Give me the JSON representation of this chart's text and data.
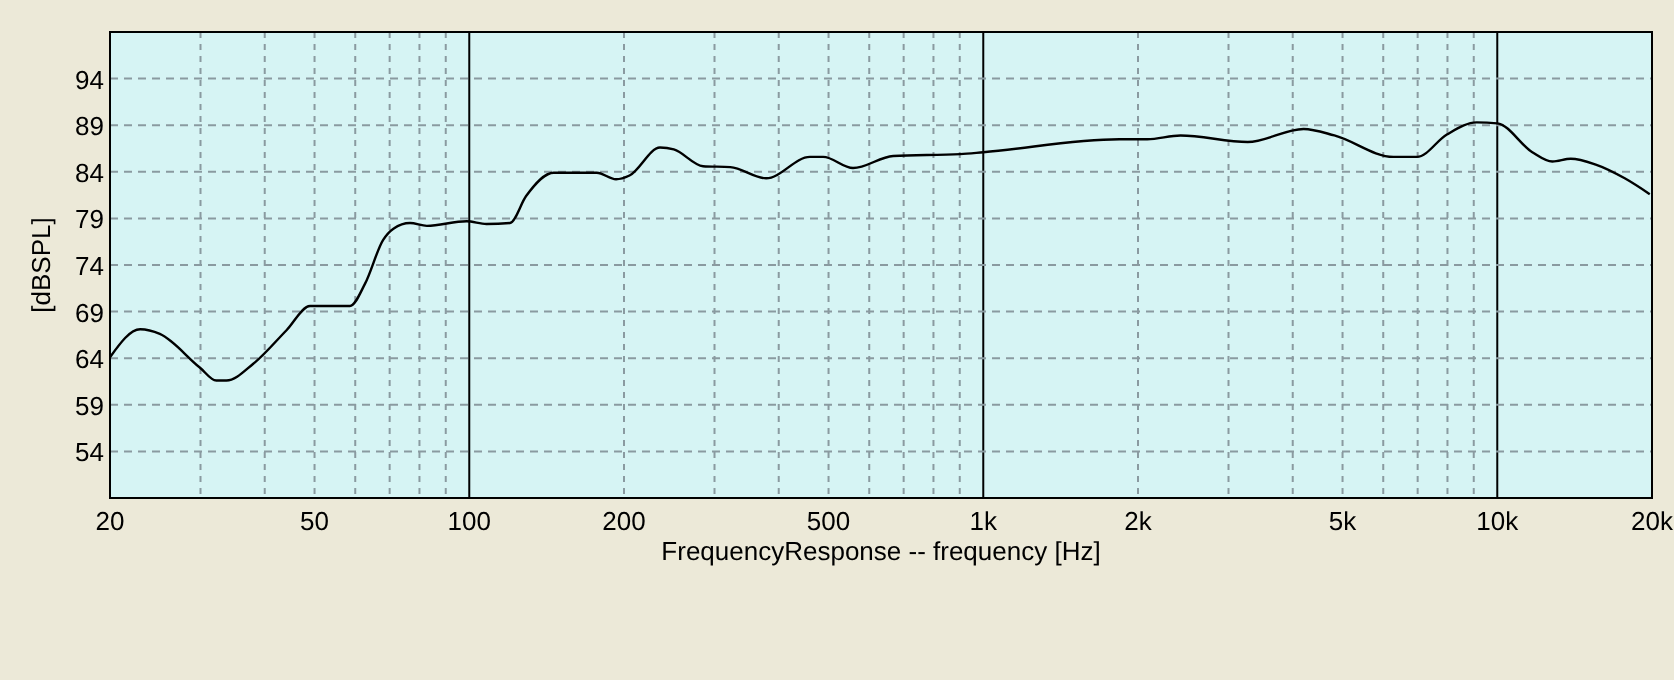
{
  "chart_data": {
    "type": "line",
    "xlabel": "FrequencyResponse -- frequency [Hz]",
    "ylabel": "[dBSPL]",
    "log": "x",
    "grid": true,
    "xlim": [
      20,
      20000
    ],
    "ylim": [
      49,
      99
    ],
    "yticks": [
      54,
      59,
      64,
      69,
      74,
      79,
      84,
      89,
      94
    ],
    "xticks": [
      20,
      {
        "value": 30,
        "label": null
      },
      {
        "value": 40,
        "label": null
      },
      50,
      {
        "value": 60,
        "label": null
      },
      {
        "value": 70,
        "label": null
      },
      {
        "value": 80,
        "label": null
      },
      {
        "value": 90,
        "label": null
      },
      100,
      200,
      {
        "value": 300,
        "label": null
      },
      {
        "value": 400,
        "label": null
      },
      500,
      {
        "value": 600,
        "label": null
      },
      {
        "value": 700,
        "label": null
      },
      {
        "value": 800,
        "label": null
      },
      {
        "value": 900,
        "label": null
      },
      {
        "value": 1000,
        "label": "1k"
      },
      {
        "value": 2000,
        "label": "2k"
      },
      {
        "value": 3000,
        "label": null
      },
      {
        "value": 4000,
        "label": null
      },
      {
        "value": 5000,
        "label": "5k"
      },
      {
        "value": 6000,
        "label": null
      },
      {
        "value": 7000,
        "label": null
      },
      {
        "value": 8000,
        "label": null
      },
      {
        "value": 9000,
        "label": null
      },
      {
        "value": 10000,
        "label": "10k"
      },
      {
        "value": 20000,
        "label": "20k"
      }
    ],
    "series": [
      {
        "color": "#000000",
        "x": [
          20,
          22.9,
          25,
          29.9,
          32.2,
          33.7,
          38,
          44.1,
          49,
          58.6,
          62.7,
          68,
          71.2,
          76.7,
          82.7,
          98.8,
          108,
          120,
          129,
          146,
          177,
          193,
          205,
          235,
          250,
          285,
          322,
          378,
          460,
          488,
          558,
          668,
          902,
          1000,
          1840,
          2085,
          2420,
          3270,
          4200,
          4820,
          6280,
          6980,
          7980,
          9120,
          10000,
          11700,
          12800,
          13900,
          15500,
          17700,
          19800
        ],
        "values": [
          64.1,
          67.1,
          66.6,
          63.0,
          61.6,
          61.6,
          63.4,
          67.0,
          69.6,
          69.6,
          72.0,
          76.7,
          77.9,
          78.5,
          78.2,
          78.7,
          78.4,
          78.5,
          81.4,
          83.9,
          83.9,
          83.2,
          83.6,
          86.6,
          86.4,
          84.6,
          84.5,
          83.3,
          85.6,
          85.6,
          84.4,
          85.7,
          85.9,
          86.1,
          87.5,
          87.5,
          87.9,
          87.2,
          88.6,
          87.9,
          85.6,
          85.6,
          88.0,
          89.3,
          89.2,
          86.1,
          85.1,
          85.4,
          84.8,
          83.3,
          81.6
        ]
      }
    ]
  }
}
